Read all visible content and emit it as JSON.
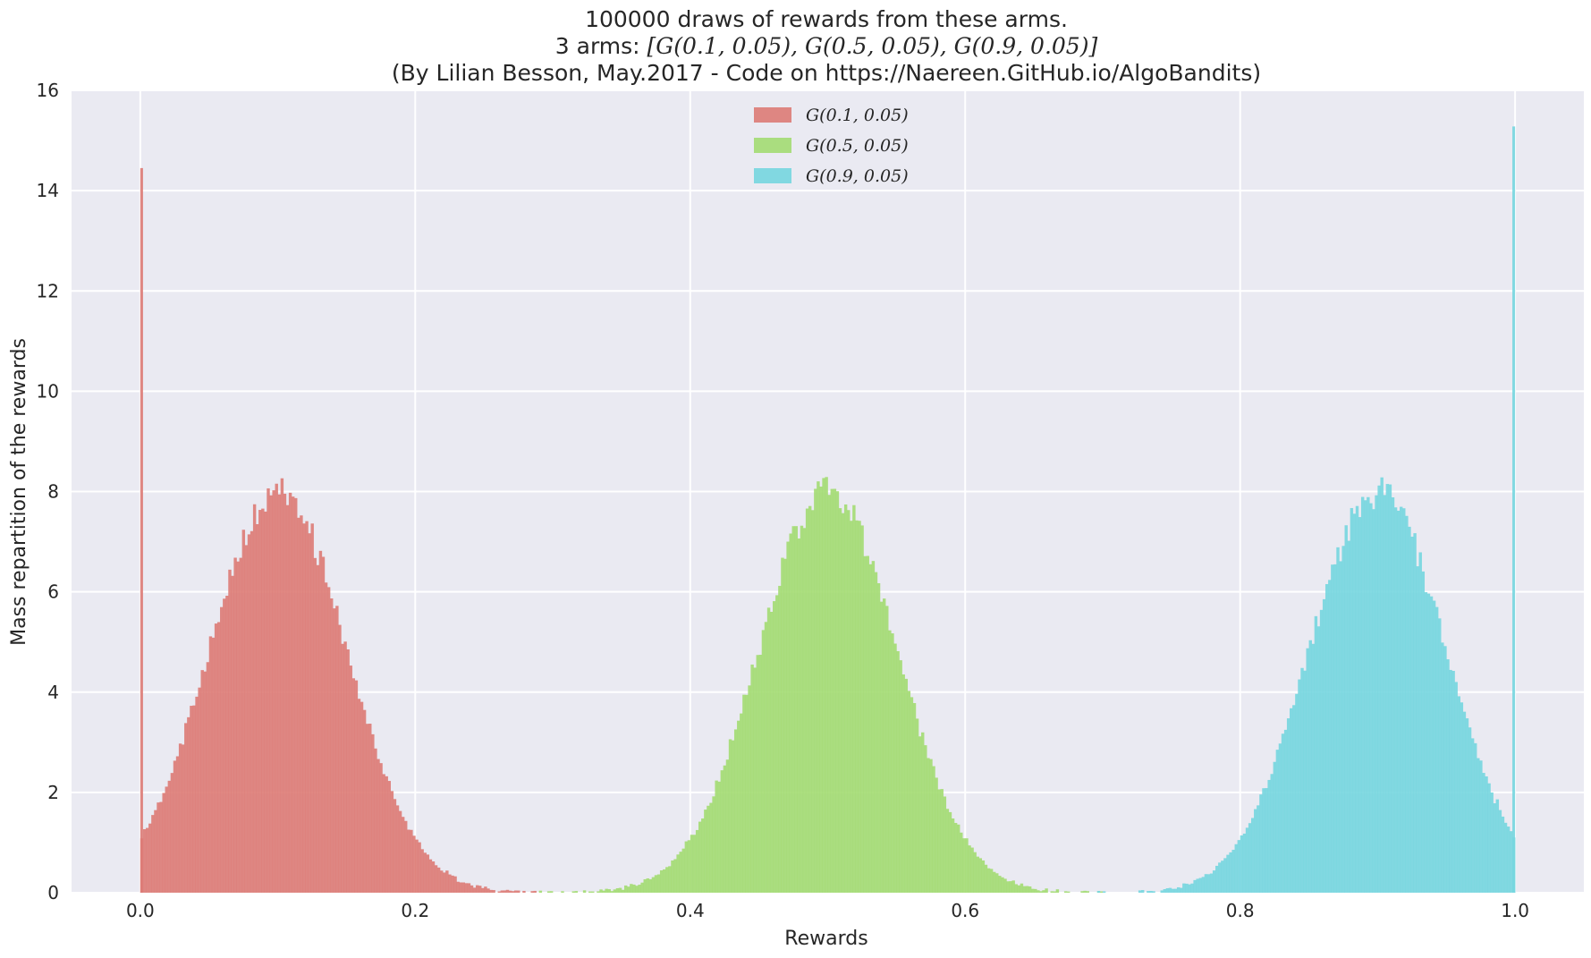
{
  "chart_data": {
    "type": "histogram",
    "title_lines": [
      {
        "text": "100000 draws of rewards from these arms."
      },
      {
        "prefix": "3 arms: ",
        "math": "[G(0.1, 0.05), G(0.5, 0.05), G(0.9, 0.05)]"
      },
      {
        "text": "(By Lilian Besson, May.2017 - Code on https://Naereen.GitHub.io/AlgoBandits)"
      }
    ],
    "xlabel": "Rewards",
    "ylabel": "Mass repartition of the rewards",
    "xlim": [
      -0.05,
      1.05
    ],
    "ylim": [
      0,
      16
    ],
    "xticks": [
      "0.0",
      "0.2",
      "0.4",
      "0.6",
      "0.8",
      "1.0"
    ],
    "yticks": [
      "0",
      "2",
      "4",
      "6",
      "8",
      "10",
      "12",
      "14",
      "16"
    ],
    "grid": true,
    "legend_position": "upper center",
    "background": "#eaeaf2",
    "bin_width": 0.002,
    "series": [
      {
        "name": "G(0.1, 0.05)",
        "color": "#dd7b76",
        "mean": 0.1,
        "sd": 0.05,
        "peak": 8.0,
        "edge_spike_x": 0.0,
        "edge_spike_value": 14.45
      },
      {
        "name": "G(0.5, 0.05)",
        "color": "#a3dc72",
        "mean": 0.5,
        "sd": 0.05,
        "peak": 8.0
      },
      {
        "name": "G(0.9, 0.05)",
        "color": "#76d6df",
        "mean": 0.9,
        "sd": 0.05,
        "peak": 8.0,
        "edge_spike_x": 1.0,
        "edge_spike_value": 15.28
      }
    ]
  }
}
